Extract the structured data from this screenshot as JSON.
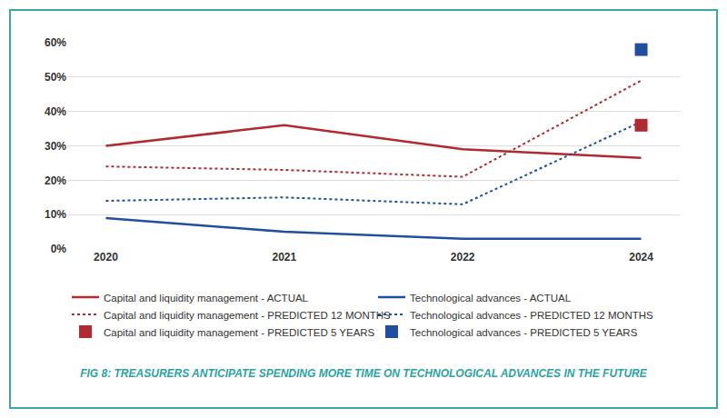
{
  "chart_data": {
    "type": "line",
    "title": "FIG 8: TREASURERS ANTICIPATE SPENDING MORE TIME ON TECHNOLOGICAL ADVANCES IN THE FUTURE",
    "categories": [
      "2020",
      "2021",
      "2022",
      "2024"
    ],
    "series": [
      {
        "name": "Capital and liquidity management - ACTUAL",
        "color": "#b02a30",
        "line_style": "solid",
        "values": [
          30,
          36,
          29,
          26.5
        ]
      },
      {
        "name": "Technological advances - ACTUAL",
        "color": "#1f4f9e",
        "line_style": "solid",
        "values": [
          9,
          5,
          3,
          3
        ]
      },
      {
        "name": "Capital and liquidity management - PREDICTED 12 MONTHS",
        "color": "#b02a30",
        "line_style": "dot",
        "values": [
          24,
          23,
          21,
          49
        ]
      },
      {
        "name": "Technological advances - PREDICTED 12 MONTHS",
        "color": "#1f4f9e",
        "line_style": "dot",
        "values": [
          14,
          15,
          13,
          37
        ]
      },
      {
        "name": "Capital and liquidity management - PREDICTED 5 YEARS",
        "color": "#b02a30",
        "line_style": "none",
        "marker": "square",
        "values": [
          null,
          null,
          null,
          36
        ]
      },
      {
        "name": "Technological advances - PREDICTED 5 YEARS",
        "color": "#1f4f9e",
        "line_style": "none",
        "marker": "square",
        "values": [
          null,
          null,
          null,
          58
        ]
      }
    ],
    "ylim": [
      0,
      60
    ],
    "yticks": [
      {
        "value": 0,
        "label": "0%"
      },
      {
        "value": 10,
        "label": "10%"
      },
      {
        "value": 20,
        "label": "20%"
      },
      {
        "value": 30,
        "label": "30%"
      },
      {
        "value": 40,
        "label": "40%"
      },
      {
        "value": 50,
        "label": "50%"
      },
      {
        "value": 60,
        "label": "60%"
      }
    ],
    "grid": true,
    "legend": "bottom"
  }
}
